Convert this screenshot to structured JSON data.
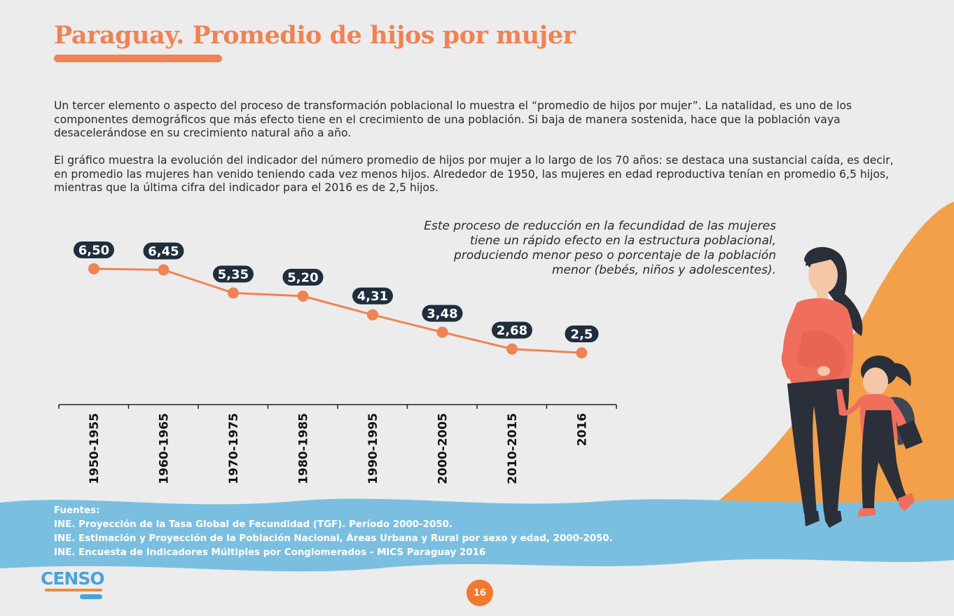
{
  "header": {
    "title": "Paraguay. Promedio de hijos por mujer"
  },
  "body": {
    "paragraph_1": "Un tercer elemento o aspecto del proceso de transformación poblacional lo muestra el “promedio de hijos por mujer”. La natalidad, es uno de los componentes demográficos que más efecto tiene en el crecimiento de una población. Si baja de manera sostenida, hace que la población vaya desacelerándose en su crecimiento natural año a año.",
    "paragraph_2": "El gráfico muestra la evolución del indicador del número promedio de hijos por mujer a lo largo de los 70 años: se destaca una sustancial caída, es decir, en promedio las mujeres han venido teniendo cada vez menos hijos. Alrededor de 1950, las mujeres en edad reproductiva tenían en promedio 6,5 hijos, mientras que la última cifra del indicador para el 2016 es de 2,5 hijos.",
    "quote": "Este proceso de reducción en la fecundidad de las mujeres tiene un rápido efecto en la estructura poblacional, produciendo menor peso o porcentaje de la población menor (bebés, niños y adolescentes)."
  },
  "chart_data": {
    "type": "line",
    "title": "",
    "xlabel": "",
    "ylabel": "",
    "categories": [
      "1950-1955",
      "1960-1965",
      "1970-1975",
      "1980-1985",
      "1990-1995",
      "2000-2005",
      "2010-2015",
      "2016"
    ],
    "values": [
      6.5,
      6.45,
      5.35,
      5.2,
      4.31,
      3.48,
      2.68,
      2.5
    ],
    "value_labels": [
      "6,50",
      "6,45",
      "5,35",
      "5,20",
      "4,31",
      "3,48",
      "2,68",
      "2,5"
    ],
    "ylim": [
      0,
      8
    ],
    "grid": false,
    "line_color": "#ef8354",
    "label_bg_color": "#1f2d3d",
    "label_text_color": "#ffffff"
  },
  "sources": {
    "heading": "Fuentes:",
    "items": [
      "INE. Proyección de la Tasa Global de Fecundidad (TGF).  Período 2000-2050.",
      "INE. Estimación y Proyección de la Población  Nacional, Áreas Urbana y Rural por sexo y  edad, 2000-2050.",
      "INE. Encuesta de Indicadores Múltiples por Conglomerados - MICS Paraguay 2016"
    ]
  },
  "footer": {
    "logo_text": "CENSO",
    "page_number": "16"
  },
  "colors": {
    "accent_orange": "#ef8354",
    "wave_blue": "#7bbfe0",
    "hill_orange": "#f2a04a",
    "dark": "#1f2d3d"
  },
  "icons": [
    "pregnant-woman-illustration",
    "girl-with-backpack-illustration"
  ]
}
